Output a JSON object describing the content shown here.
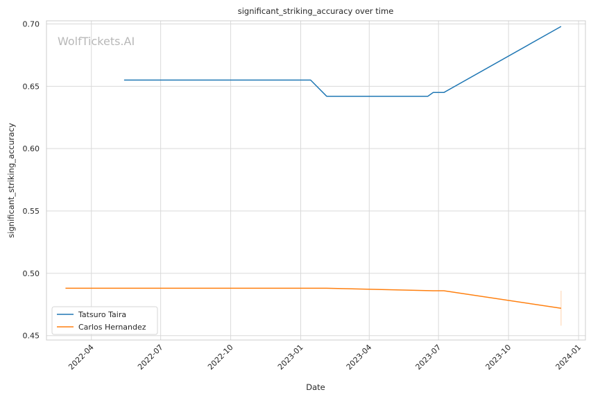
{
  "chart_data": {
    "type": "line",
    "title": "significant_striking_accuracy over time",
    "xlabel": "Date",
    "ylabel": "significant_striking_accuracy",
    "watermark": "WolfTickets.AI",
    "xlim": [
      "2022-02-01",
      "2024-01-10"
    ],
    "ylim": [
      0.4465,
      0.7025
    ],
    "x_ticks": [
      "2022-04-01",
      "2022-07-01",
      "2022-10-01",
      "2023-01-01",
      "2023-04-01",
      "2023-07-01",
      "2023-10-01",
      "2024-01-01"
    ],
    "x_tick_labels": [
      "2022-04",
      "2022-07",
      "2022-10",
      "2023-01",
      "2023-04",
      "2023-07",
      "2023-10",
      "2024-01"
    ],
    "y_ticks": [
      0.45,
      0.5,
      0.55,
      0.6,
      0.65,
      0.7
    ],
    "y_tick_labels": [
      "0.45",
      "0.50",
      "0.55",
      "0.60",
      "0.65",
      "0.70"
    ],
    "grid": true,
    "legend_position": "lower-left",
    "series": [
      {
        "name": "Tatsuro Taira",
        "color": "#1f77b4",
        "x": [
          "2022-05-14",
          "2023-01-14",
          "2023-02-04",
          "2023-06-17",
          "2023-06-24",
          "2023-07-08",
          "2023-12-09"
        ],
        "y": [
          0.655,
          0.655,
          0.642,
          0.642,
          0.645,
          0.645,
          0.698
        ]
      },
      {
        "name": "Carlos Hernandez",
        "color": "#ff7f0e",
        "x": [
          "2022-02-26",
          "2023-02-04",
          "2023-06-24",
          "2023-07-08",
          "2023-12-09"
        ],
        "y": [
          0.488,
          0.488,
          0.486,
          0.486,
          0.472
        ],
        "error_bar": {
          "x": "2023-12-09",
          "low": 0.458,
          "high": 0.486
        }
      }
    ]
  }
}
